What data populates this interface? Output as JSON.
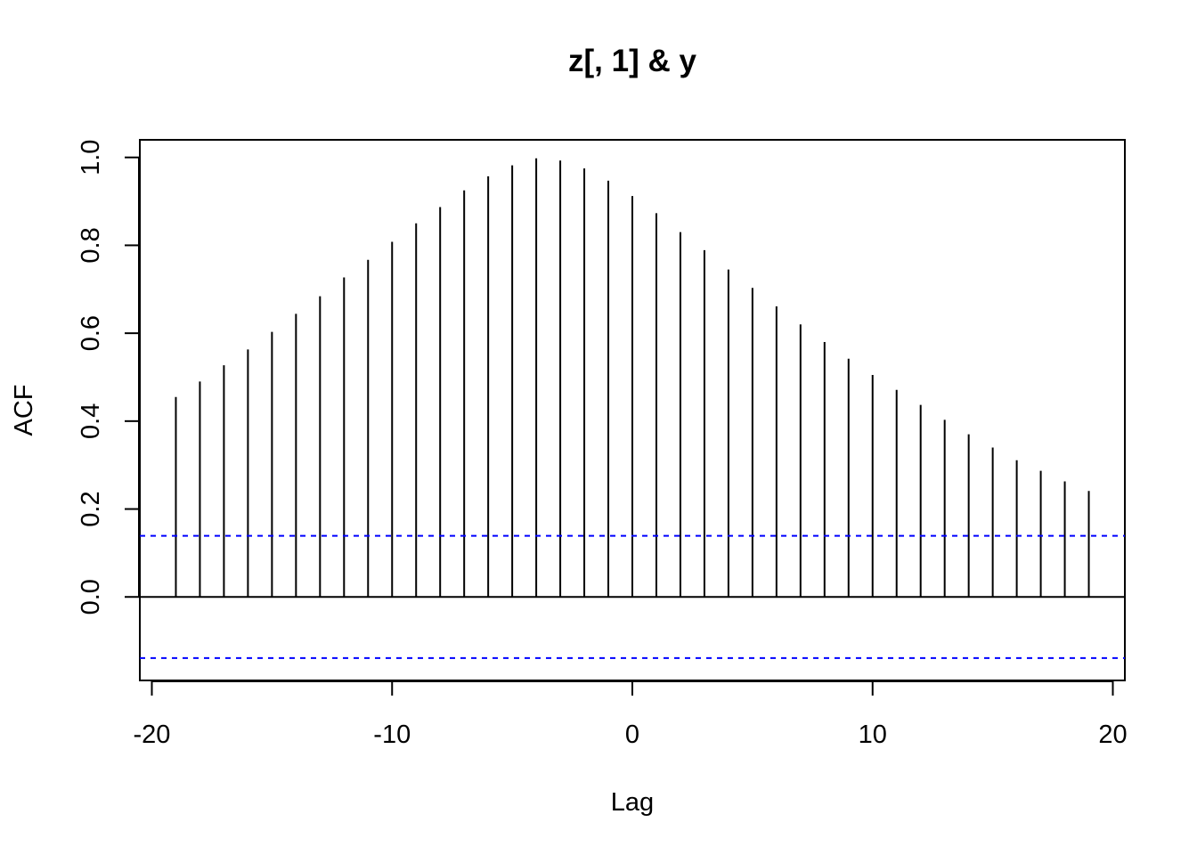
{
  "chart_data": {
    "type": "bar",
    "title": "z[, 1] & y",
    "xlabel": "Lag",
    "ylabel": "ACF",
    "xlim": [
      -20.5,
      20.5
    ],
    "ylim": [
      -0.19,
      1.04
    ],
    "xticks": [
      -20,
      -10,
      0,
      10,
      20
    ],
    "xtick_labels": [
      "-20",
      "-10",
      "0",
      "10",
      "20"
    ],
    "yticks": [
      0.0,
      0.2,
      0.4,
      0.6,
      0.8,
      1.0
    ],
    "ytick_labels": [
      "0.0",
      "0.2",
      "0.4",
      "0.6",
      "0.8",
      "1.0"
    ],
    "lags": [
      -19,
      -18,
      -17,
      -16,
      -15,
      -14,
      -13,
      -12,
      -11,
      -10,
      -9,
      -8,
      -7,
      -6,
      -5,
      -4,
      -3,
      -2,
      -1,
      0,
      1,
      2,
      3,
      4,
      5,
      6,
      7,
      8,
      9,
      10,
      11,
      12,
      13,
      14,
      15,
      16,
      17,
      18,
      19
    ],
    "values": [
      0.455,
      0.49,
      0.527,
      0.563,
      0.603,
      0.644,
      0.684,
      0.727,
      0.767,
      0.808,
      0.85,
      0.887,
      0.925,
      0.957,
      0.982,
      0.998,
      0.993,
      0.975,
      0.947,
      0.912,
      0.873,
      0.83,
      0.789,
      0.745,
      0.703,
      0.661,
      0.62,
      0.58,
      0.542,
      0.505,
      0.471,
      0.437,
      0.403,
      0.37,
      0.34,
      0.311,
      0.287,
      0.263,
      0.241
    ],
    "confidence_bound": 0.139,
    "grid": false,
    "colors": {
      "bars": "#000000",
      "confidence_lines": "#0000ff",
      "axis": "#000000"
    }
  }
}
